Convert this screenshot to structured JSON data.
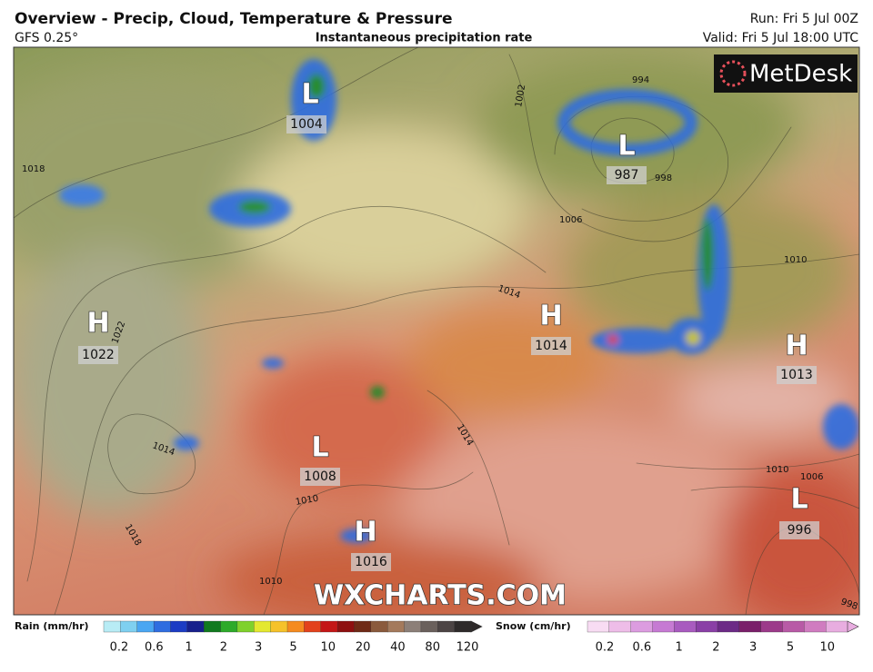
{
  "header": {
    "title": "Overview - Precip, Cloud, Temperature & Pressure",
    "model": "GFS 0.25°",
    "product": "Instantaneous precipitation rate",
    "run": "Run: Fri 5 Jul 00Z",
    "valid": "Valid: Fri 5 Jul 18:00 UTC"
  },
  "logo": "MetDesk",
  "watermark": "WXCHARTS.COM",
  "pressure_centers": [
    {
      "type": "L",
      "value": 1004
    },
    {
      "type": "L",
      "value": 987
    },
    {
      "type": "H",
      "value": 1022
    },
    {
      "type": "H",
      "value": 1014
    },
    {
      "type": "H",
      "value": 1013
    },
    {
      "type": "L",
      "value": 1008
    },
    {
      "type": "H",
      "value": 1016
    },
    {
      "type": "L",
      "value": 996
    }
  ],
  "isobar_labels": [
    1018,
    1022,
    1014,
    1018,
    1010,
    1002,
    994,
    998,
    1006,
    1010,
    1014,
    1014,
    1010,
    1006,
    998,
    1010
  ],
  "legend": {
    "rain": {
      "label": "Rain (mm/hr)",
      "ticks": [
        0.2,
        0.6,
        1,
        2,
        3,
        5,
        10,
        20,
        40,
        80,
        120
      ]
    },
    "snow": {
      "label": "Snow (cm/hr)",
      "ticks": [
        0.2,
        0.6,
        1,
        2,
        3,
        5,
        10
      ]
    }
  }
}
